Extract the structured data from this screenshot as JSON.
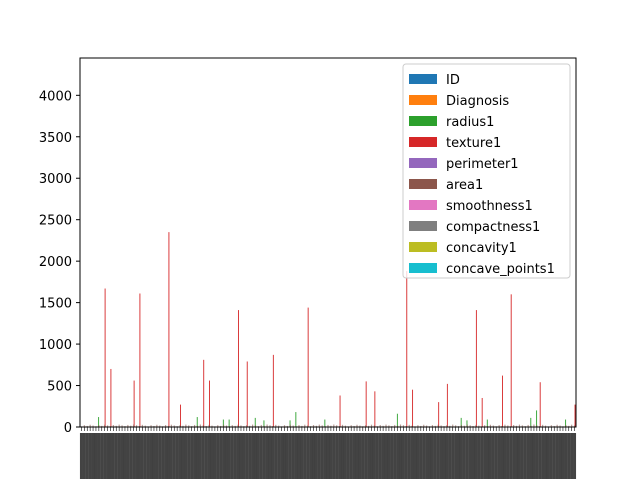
{
  "chart_data": {
    "type": "bar",
    "title": "",
    "xlabel": "",
    "ylabel": "",
    "ylim": [
      0,
      4450
    ],
    "yticks": [
      0,
      500,
      1000,
      1500,
      2000,
      2500,
      3000,
      3500,
      4000
    ],
    "legend_position": "top-right",
    "categories_note_count": 171,
    "series": [
      {
        "name": "ID",
        "color": "#1f77b4"
      },
      {
        "name": "Diagnosis",
        "color": "#ff7f0e"
      },
      {
        "name": "radius1",
        "color": "#2ca02c"
      },
      {
        "name": "texture1",
        "color": "#d62728"
      },
      {
        "name": "perimeter1",
        "color": "#9467bd"
      },
      {
        "name": "area1",
        "color": "#8c564b"
      },
      {
        "name": "smoothness1",
        "color": "#e377c2"
      },
      {
        "name": "compactness1",
        "color": "#7f7f7f"
      },
      {
        "name": "concavity1",
        "color": "#bcbd22"
      },
      {
        "name": "concave_points1",
        "color": "#17becf"
      }
    ],
    "area_peaks": [
      {
        "cat": 8,
        "value": 1670
      },
      {
        "cat": 10,
        "value": 700
      },
      {
        "cat": 18,
        "value": 560
      },
      {
        "cat": 20,
        "value": 1610
      },
      {
        "cat": 30,
        "value": 2350
      },
      {
        "cat": 34,
        "value": 270
      },
      {
        "cat": 42,
        "value": 810
      },
      {
        "cat": 44,
        "value": 560
      },
      {
        "cat": 54,
        "value": 1410
      },
      {
        "cat": 57,
        "value": 790
      },
      {
        "cat": 66,
        "value": 870
      },
      {
        "cat": 78,
        "value": 1440
      },
      {
        "cat": 89,
        "value": 380
      },
      {
        "cat": 98,
        "value": 550
      },
      {
        "cat": 101,
        "value": 430
      },
      {
        "cat": 112,
        "value": 1880
      },
      {
        "cat": 114,
        "value": 450
      },
      {
        "cat": 123,
        "value": 300
      },
      {
        "cat": 126,
        "value": 520
      },
      {
        "cat": 136,
        "value": 1410
      },
      {
        "cat": 138,
        "value": 350
      },
      {
        "cat": 145,
        "value": 620
      },
      {
        "cat": 148,
        "value": 1600
      },
      {
        "cat": 158,
        "value": 540
      },
      {
        "cat": 170,
        "value": 270
      }
    ],
    "perimeter_peaks": [
      {
        "cat": 6,
        "value": 120
      },
      {
        "cat": 40,
        "value": 120
      },
      {
        "cat": 49,
        "value": 90
      },
      {
        "cat": 51,
        "value": 90
      },
      {
        "cat": 60,
        "value": 110
      },
      {
        "cat": 63,
        "value": 80
      },
      {
        "cat": 72,
        "value": 80
      },
      {
        "cat": 74,
        "value": 180
      },
      {
        "cat": 84,
        "value": 90
      },
      {
        "cat": 109,
        "value": 160
      },
      {
        "cat": 131,
        "value": 110
      },
      {
        "cat": 133,
        "value": 80
      },
      {
        "cat": 140,
        "value": 90
      },
      {
        "cat": 155,
        "value": 110
      },
      {
        "cat": 157,
        "value": 200
      },
      {
        "cat": 167,
        "value": 90
      }
    ]
  }
}
